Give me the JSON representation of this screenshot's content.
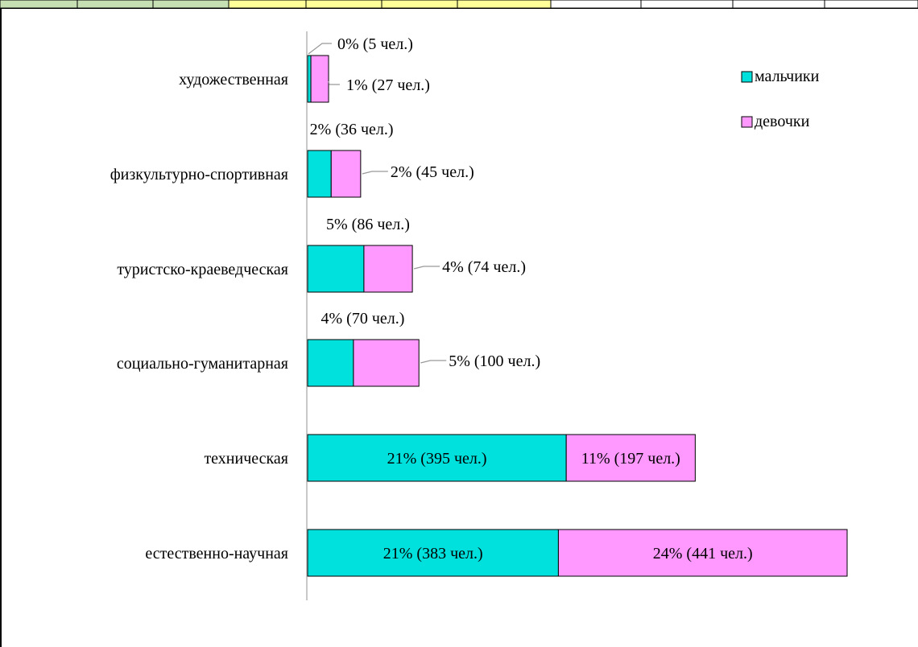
{
  "colors": {
    "boys": "#00e0dc",
    "girls": "#ff99ff",
    "axis": "#c8c8c8",
    "header_cells": [
      "#c6e0b4",
      "#c6e0b4",
      "#c6e0b4",
      "#ffff99",
      "#ffff99",
      "#ffff99",
      "#ffff99",
      "#ffffff",
      "#ffffff",
      "#ffffff",
      "#ffffff"
    ]
  },
  "chart_data": {
    "type": "bar",
    "orientation": "horizontal",
    "stacked": true,
    "categories": [
      "художественная",
      "физкультурно-спортивная",
      "туристско-краеведческая",
      "социально-гуманитарная",
      "техническая",
      "естественно-научная"
    ],
    "series": [
      {
        "name": "мальчики",
        "values": [
          5,
          36,
          86,
          70,
          395,
          383
        ],
        "labels": [
          "0% (5 чел.)",
          "2% (36 чел.)",
          "5% (86 чел.)",
          "4% (70 чел.)",
          "21% (395 чел.)",
          "21% (383 чел.)"
        ]
      },
      {
        "name": "девочки",
        "values": [
          27,
          45,
          74,
          100,
          197,
          441
        ],
        "labels": [
          "1% (27 чел.)",
          "2% (45 чел.)",
          "4% (74 чел.)",
          "5% (100 чел.)",
          "11% (197 чел.)",
          "24% (441 чел.)"
        ]
      }
    ],
    "title": "",
    "xlabel": "",
    "ylabel": "",
    "grid": false,
    "legend_position": "top-right"
  }
}
